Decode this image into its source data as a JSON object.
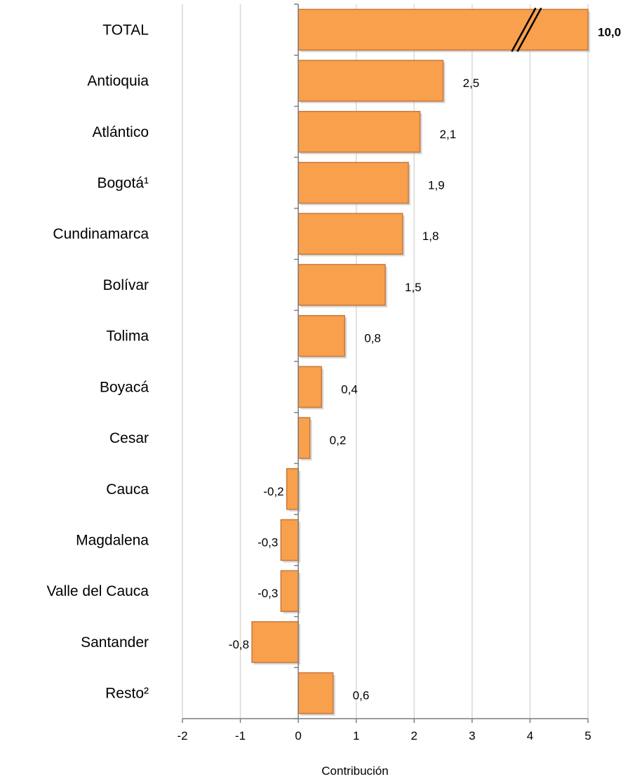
{
  "chart_data": {
    "type": "bar",
    "orientation": "horizontal",
    "categories": [
      "TOTAL",
      "Antioquia",
      "Atlántico",
      "Bogotá¹",
      "Cundinamarca",
      "Bolívar",
      "Tolima",
      "Boyacá",
      "Cesar",
      "Cauca",
      "Magdalena",
      "Valle del Cauca",
      "Santander",
      "Resto²"
    ],
    "values": [
      10.0,
      2.5,
      2.1,
      1.9,
      1.8,
      1.5,
      0.8,
      0.4,
      0.2,
      -0.2,
      -0.3,
      -0.3,
      -0.8,
      0.6
    ],
    "value_labels": [
      "10,0",
      "2,5",
      "2,1",
      "1,9",
      "1,8",
      "1,5",
      "0,8",
      "0,4",
      "0,2",
      "-0,2",
      "-0,3",
      "-0,3",
      "-0,8",
      "0,6"
    ],
    "xlabel": "Contribución",
    "ylabel": "",
    "xlim": [
      -2,
      5
    ],
    "xticks": [
      "-2",
      "-1",
      "0",
      "1",
      "2",
      "3",
      "4",
      "5"
    ],
    "grid": "vertical",
    "broken_bar": "TOTAL",
    "bar_color": "#f9a04d",
    "bar_edge_color": "#c8773a",
    "grid_color": "#d9d9d9"
  }
}
